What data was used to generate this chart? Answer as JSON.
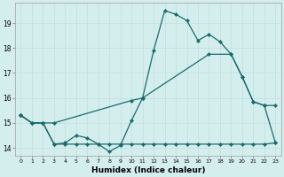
{
  "xlabel": "Humidex (Indice chaleur)",
  "bg_color": "#d4eeee",
  "grid_color": "#c0dede",
  "line_color": "#1a6b6b",
  "xlim": [
    -0.5,
    23.5
  ],
  "ylim": [
    13.7,
    19.8
  ],
  "yticks": [
    14,
    15,
    16,
    17,
    18,
    19
  ],
  "xticks": [
    0,
    1,
    2,
    3,
    4,
    5,
    6,
    7,
    8,
    9,
    10,
    11,
    12,
    13,
    14,
    15,
    16,
    17,
    18,
    19,
    20,
    21,
    22,
    23
  ],
  "line1_x": [
    0,
    1,
    2,
    3,
    4,
    5,
    6,
    7,
    8,
    9,
    10,
    11,
    12,
    13,
    14,
    15,
    16,
    17,
    18,
    19,
    20,
    21,
    22,
    23
  ],
  "line1_y": [
    15.3,
    15.0,
    15.0,
    14.15,
    14.2,
    14.5,
    14.4,
    14.15,
    13.85,
    14.1,
    15.1,
    16.0,
    17.9,
    19.5,
    19.35,
    19.1,
    18.3,
    18.55,
    18.25,
    17.75,
    16.85,
    15.85,
    15.7,
    15.7
  ],
  "line2_x": [
    0,
    1,
    2,
    3,
    10,
    11,
    17,
    19,
    20,
    21,
    22,
    23
  ],
  "line2_y": [
    15.3,
    15.0,
    15.0,
    15.0,
    15.9,
    16.0,
    17.75,
    17.75,
    16.85,
    15.85,
    15.7,
    14.2
  ],
  "line3_x": [
    0,
    1,
    2,
    3,
    4,
    5,
    6,
    7,
    8,
    9,
    10,
    11,
    12,
    13,
    14,
    15,
    16,
    17,
    18,
    19,
    20,
    21,
    22,
    23
  ],
  "line3_y": [
    15.3,
    15.0,
    15.0,
    14.15,
    14.15,
    14.15,
    14.15,
    14.15,
    14.15,
    14.15,
    14.15,
    14.15,
    14.15,
    14.15,
    14.15,
    14.15,
    14.15,
    14.15,
    14.15,
    14.15,
    14.15,
    14.15,
    14.15,
    14.2
  ]
}
